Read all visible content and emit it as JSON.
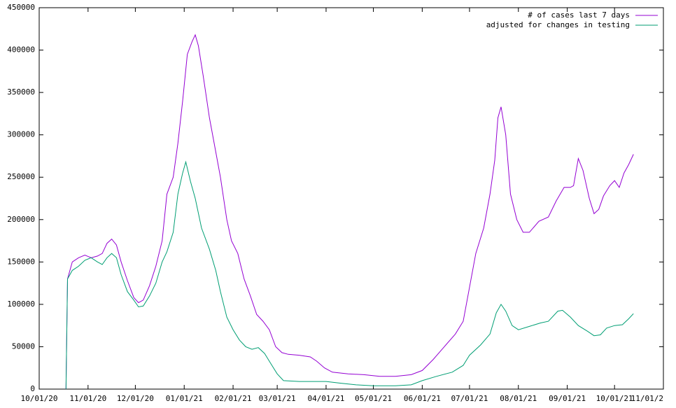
{
  "chart_data": {
    "type": "line",
    "xlim": [
      "10/01/20",
      "11/01/21"
    ],
    "xticks": [
      "10/01/20",
      "11/01/20",
      "12/01/20",
      "01/01/21",
      "02/01/21",
      "03/01/21",
      "04/01/21",
      "05/01/21",
      "06/01/21",
      "07/01/21",
      "08/01/21",
      "09/01/21",
      "10/01/21",
      {
        "value": "11/01/21",
        "label": "11/01/2"
      }
    ],
    "ylim": [
      0,
      450000
    ],
    "yticks": [
      0,
      50000,
      100000,
      150000,
      200000,
      250000,
      300000,
      350000,
      400000,
      450000
    ],
    "legend": "top-right",
    "series": [
      {
        "name": "# of cases last 7 days",
        "color": "#9400d3",
        "x": [
          "10/18/20",
          "10/19/20",
          "10/22/20",
          "10/26/20",
          "10/30/20",
          "11/03/20",
          "11/07/20",
          "11/10/20",
          "11/13/20",
          "11/16/20",
          "11/19/20",
          "11/22/20",
          "11/26/20",
          "11/30/20",
          "12/03/20",
          "12/06/20",
          "12/10/20",
          "12/14/20",
          "12/18/20",
          "12/21/20",
          "12/25/20",
          "12/28/20",
          "12/31/20",
          "01/03/21",
          "01/06/21",
          "01/08/21",
          "01/10/21",
          "01/13/21",
          "01/17/21",
          "01/21/21",
          "01/24/21",
          "01/28/21",
          "01/31/21",
          "02/04/21",
          "02/08/21",
          "02/12/21",
          "02/16/21",
          "02/20/21",
          "02/24/21",
          "02/28/21",
          "03/04/21",
          "03/08/21",
          "03/15/21",
          "03/22/21",
          "03/26/21",
          "03/31/21",
          "04/05/21",
          "04/15/21",
          "04/25/21",
          "05/05/21",
          "05/15/21",
          "05/25/21",
          "06/01/21",
          "06/08/21",
          "06/15/21",
          "06/22/21",
          "06/27/21",
          "07/01/21",
          "07/05/21",
          "07/10/21",
          "07/14/21",
          "07/17/21",
          "07/19/21",
          "07/21/21",
          "07/24/21",
          "07/27/21",
          "07/31/21",
          "08/04/21",
          "08/08/21",
          "08/14/21",
          "08/20/21",
          "08/25/21",
          "08/30/21",
          "09/03/21",
          "09/05/21",
          "09/08/21",
          "09/11/21",
          "09/15/21",
          "09/18/21",
          "09/21/21",
          "09/24/21",
          "09/28/21",
          "10/01/21",
          "10/04/21",
          "10/07/21",
          "10/10/21",
          "10/13/21"
        ],
        "values": [
          0,
          130000,
          150000,
          155000,
          158000,
          155000,
          157000,
          160000,
          172000,
          177000,
          170000,
          150000,
          128000,
          108000,
          102000,
          105000,
          122000,
          145000,
          175000,
          230000,
          250000,
          290000,
          340000,
          395000,
          410000,
          418000,
          405000,
          370000,
          320000,
          280000,
          250000,
          200000,
          175000,
          160000,
          130000,
          110000,
          88000,
          80000,
          70000,
          50000,
          43000,
          41000,
          40000,
          38000,
          33000,
          25000,
          20000,
          18000,
          17000,
          15000,
          15000,
          17000,
          22000,
          35000,
          50000,
          65000,
          80000,
          120000,
          160000,
          190000,
          230000,
          270000,
          320000,
          333000,
          300000,
          230000,
          200000,
          185000,
          185000,
          198000,
          203000,
          222000,
          238000,
          238000,
          240000,
          272000,
          258000,
          225000,
          207000,
          212000,
          228000,
          240000,
          246000,
          238000,
          255000,
          265000,
          277000
        ]
      },
      {
        "name": "adjusted for changes in testing",
        "color": "#009e73",
        "x": [
          "10/18/20",
          "10/19/20",
          "10/22/20",
          "10/26/20",
          "10/30/20",
          "11/03/20",
          "11/07/20",
          "11/10/20",
          "11/13/20",
          "11/16/20",
          "11/19/20",
          "11/22/20",
          "11/26/20",
          "11/30/20",
          "12/03/20",
          "12/06/20",
          "12/10/20",
          "12/14/20",
          "12/18/20",
          "12/21/20",
          "12/25/20",
          "12/28/20",
          "12/31/20",
          "01/02/21",
          "01/05/21",
          "01/08/21",
          "01/12/21",
          "01/17/21",
          "01/21/21",
          "01/24/21",
          "01/28/21",
          "02/01/21",
          "02/05/21",
          "02/09/21",
          "02/13/21",
          "02/17/21",
          "02/21/21",
          "02/25/21",
          "03/01/21",
          "03/05/21",
          "03/15/21",
          "03/25/21",
          "04/01/21",
          "04/10/21",
          "04/20/21",
          "05/01/21",
          "05/15/21",
          "05/25/21",
          "06/01/21",
          "06/10/21",
          "06/20/21",
          "06/27/21",
          "07/01/21",
          "07/08/21",
          "07/14/21",
          "07/18/21",
          "07/21/21",
          "07/24/21",
          "07/28/21",
          "08/01/21",
          "08/08/21",
          "08/15/21",
          "08/20/21",
          "08/26/21",
          "08/29/21",
          "09/03/21",
          "09/08/21",
          "09/14/21",
          "09/18/21",
          "09/22/21",
          "09/26/21",
          "10/01/21",
          "10/06/21",
          "10/10/21",
          "10/13/21"
        ],
        "values": [
          0,
          130000,
          140000,
          145000,
          152000,
          155000,
          150000,
          147000,
          155000,
          160000,
          155000,
          135000,
          115000,
          105000,
          97000,
          98000,
          110000,
          125000,
          150000,
          162000,
          185000,
          230000,
          255000,
          268000,
          245000,
          225000,
          190000,
          165000,
          140000,
          115000,
          85000,
          70000,
          58000,
          50000,
          47000,
          49000,
          42000,
          30000,
          18000,
          10000,
          9000,
          9000,
          9000,
          7000,
          5000,
          4000,
          4000,
          5000,
          10000,
          15000,
          20000,
          28000,
          40000,
          52000,
          65000,
          90000,
          100000,
          92000,
          75000,
          70000,
          74000,
          78000,
          80000,
          92000,
          93000,
          85000,
          75000,
          68000,
          63000,
          64000,
          72000,
          75000,
          76000,
          83000,
          89000
        ]
      }
    ]
  }
}
